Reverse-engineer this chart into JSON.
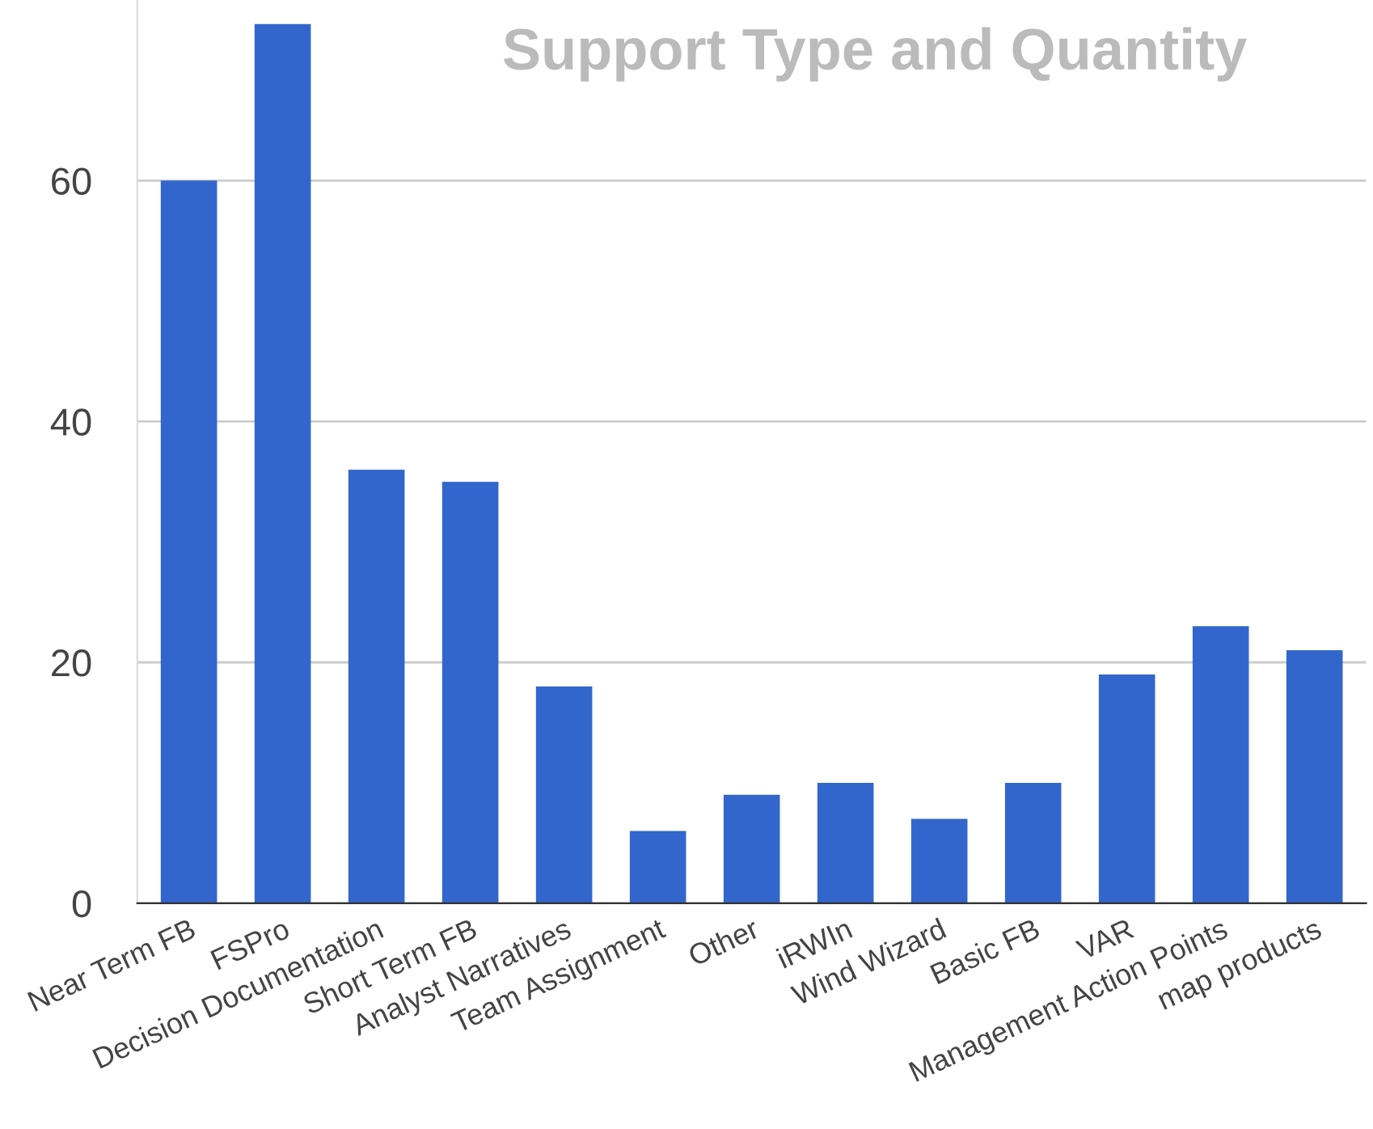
{
  "chart_data": {
    "type": "bar",
    "title": "Support Type and Quantity",
    "categories": [
      "Near Term FB",
      "FSPro",
      "Decision Documentation",
      "Short Term FB",
      "Analyst Narratives",
      "Team Assignment",
      "Other",
      "iRWIn",
      "Wind Wizard",
      "Basic FB",
      "VAR",
      "Management Action Points",
      "map products"
    ],
    "values": [
      60,
      73,
      36,
      35,
      18,
      6,
      9,
      10,
      7,
      10,
      19,
      23,
      21
    ],
    "color": "#3366cc",
    "ylim": [
      0,
      75
    ],
    "yticks": [
      0,
      20,
      40,
      60
    ],
    "grid": "y"
  }
}
